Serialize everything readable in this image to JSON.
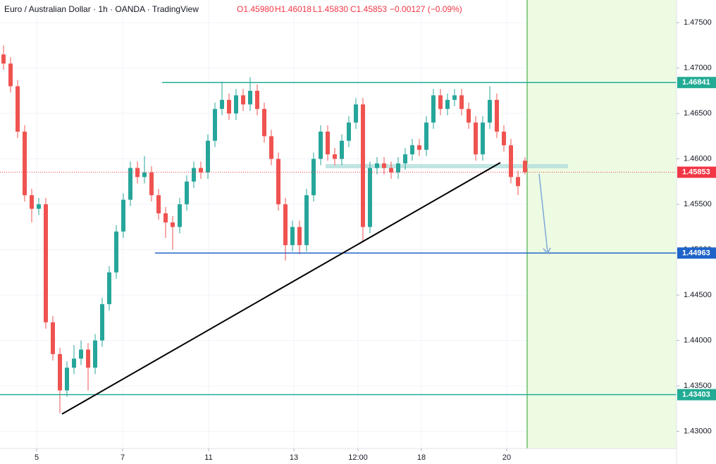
{
  "chart_data": {
    "type": "candlestick",
    "title": "Euro / Australian Dollar · 1h · OANDA · TradingView",
    "header_ohlc": [
      "O1.45980",
      "H1.46018",
      "L1.45830",
      "C1.45853"
    ],
    "header_change": "−0.00127 (−0.09%)",
    "up_color": "#26a69a",
    "down_color": "#ef5350",
    "open": [
      1.4715,
      1.4705,
      1.468,
      1.463,
      1.456,
      1.4545,
      1.455,
      1.442,
      1.4385,
      1.4345,
      1.437,
      1.438,
      1.439,
      1.437,
      1.44,
      1.444,
      1.4475,
      1.452,
      1.4555,
      1.459,
      1.458,
      1.4585,
      1.456,
      1.454,
      1.453,
      1.4525,
      1.455,
      1.4575,
      1.459,
      1.4585,
      1.462,
      1.4655,
      1.4665,
      1.465,
      1.467,
      1.466,
      1.4675,
      1.4655,
      1.4625,
      1.46,
      1.455,
      1.4505,
      1.4525,
      1.4505,
      1.456,
      1.46,
      1.463,
      1.4605,
      1.46,
      1.462,
      1.464,
      1.466,
      1.4525,
      1.459,
      1.4595,
      1.459,
      1.4585,
      1.4595,
      1.4605,
      1.4615,
      1.461,
      1.464,
      1.467,
      1.4655,
      1.4665,
      1.467,
      1.4655,
      1.464,
      1.4605,
      1.464,
      1.4665,
      1.463,
      1.4615,
      1.458,
      1.4598
    ],
    "high": [
      1.4725,
      1.4712,
      1.4687,
      1.4637,
      1.4567,
      1.4557,
      1.4557,
      1.4427,
      1.4392,
      1.4377,
      1.4395,
      1.44,
      1.4397,
      1.4407,
      1.4447,
      1.4482,
      1.4527,
      1.4562,
      1.4597,
      1.4597,
      1.4603,
      1.4592,
      1.4567,
      1.4547,
      1.4537,
      1.4557,
      1.4582,
      1.4597,
      1.4597,
      1.4627,
      1.4662,
      1.4685,
      1.4672,
      1.4677,
      1.4677,
      1.469,
      1.4682,
      1.4662,
      1.4632,
      1.4607,
      1.4557,
      1.4532,
      1.4532,
      1.4567,
      1.4607,
      1.4637,
      1.4637,
      1.4612,
      1.4627,
      1.4647,
      1.4667,
      1.4667,
      1.4597,
      1.4602,
      1.4602,
      1.4597,
      1.4602,
      1.4612,
      1.4622,
      1.4622,
      1.4647,
      1.4677,
      1.4677,
      1.4672,
      1.4677,
      1.4677,
      1.4662,
      1.4647,
      1.4647,
      1.468,
      1.4672,
      1.4637,
      1.4622,
      1.4587,
      1.46018
    ],
    "low": [
      1.4698,
      1.4673,
      1.4623,
      1.4553,
      1.453,
      1.4538,
      1.4413,
      1.4378,
      1.432,
      1.4338,
      1.4363,
      1.4373,
      1.4345,
      1.4363,
      1.4393,
      1.4433,
      1.4468,
      1.4513,
      1.4548,
      1.4573,
      1.4573,
      1.4553,
      1.4533,
      1.4513,
      1.45,
      1.4518,
      1.4543,
      1.4568,
      1.4578,
      1.4578,
      1.4613,
      1.4648,
      1.4643,
      1.4643,
      1.4653,
      1.4653,
      1.4648,
      1.4618,
      1.4593,
      1.4543,
      1.4488,
      1.4498,
      1.4495,
      1.4498,
      1.4553,
      1.4593,
      1.4598,
      1.4593,
      1.4593,
      1.4613,
      1.4633,
      1.4508,
      1.4518,
      1.4583,
      1.4583,
      1.4578,
      1.4578,
      1.4588,
      1.4598,
      1.4603,
      1.4603,
      1.4633,
      1.4648,
      1.4648,
      1.4658,
      1.4648,
      1.4633,
      1.4598,
      1.4598,
      1.4633,
      1.4623,
      1.4608,
      1.4573,
      1.456,
      1.4583
    ],
    "close": [
      1.4705,
      1.468,
      1.463,
      1.456,
      1.4545,
      1.455,
      1.442,
      1.4385,
      1.4345,
      1.437,
      1.438,
      1.439,
      1.437,
      1.44,
      1.444,
      1.4475,
      1.452,
      1.4555,
      1.459,
      1.458,
      1.4585,
      1.456,
      1.454,
      1.453,
      1.4525,
      1.455,
      1.4575,
      1.459,
      1.4585,
      1.462,
      1.4655,
      1.4665,
      1.465,
      1.467,
      1.466,
      1.4675,
      1.4655,
      1.4625,
      1.46,
      1.455,
      1.4505,
      1.4525,
      1.4505,
      1.456,
      1.46,
      1.463,
      1.4605,
      1.46,
      1.462,
      1.464,
      1.466,
      1.4525,
      1.459,
      1.4595,
      1.459,
      1.4585,
      1.4595,
      1.4605,
      1.4615,
      1.461,
      1.464,
      1.467,
      1.4655,
      1.4665,
      1.467,
      1.4655,
      1.464,
      1.4605,
      1.464,
      1.4665,
      1.463,
      1.4615,
      1.458,
      1.457,
      1.45853
    ],
    "last_color": "#f23645",
    "xlim": [
      -0.5,
      95.5
    ],
    "xticks": [
      {
        "value": 4.7,
        "label": "5"
      },
      {
        "value": 16.9,
        "label": "7"
      },
      {
        "value": 29.1,
        "label": "11"
      },
      {
        "value": 41.2,
        "label": "13"
      },
      {
        "value": 50.3,
        "label": "12:00"
      },
      {
        "value": 59.3,
        "label": "18"
      },
      {
        "value": 71.4,
        "label": "20"
      }
    ],
    "ylim": [
      1.4281,
      1.4775
    ],
    "yticks": [
      {
        "value": 1.475,
        "label": "1.47500"
      },
      {
        "value": 1.47,
        "label": "1.47000"
      },
      {
        "value": 1.465,
        "label": "1.46500"
      },
      {
        "value": 1.46,
        "label": "1.46000"
      },
      {
        "value": 1.455,
        "label": "1.45500"
      },
      {
        "value": 1.45,
        "label": "1.45000"
      },
      {
        "value": 1.445,
        "label": "1.44500"
      },
      {
        "value": 1.44,
        "label": "1.44000"
      },
      {
        "value": 1.435,
        "label": "1.43500"
      },
      {
        "value": 1.43,
        "label": "1.43000"
      }
    ],
    "grid": true,
    "levels": [
      {
        "value": 1.46841,
        "color": "#22ab94"
      },
      {
        "value": 1.44963,
        "color": "#1e63c8"
      },
      {
        "value": 1.43403,
        "color": "#22ab94"
      }
    ]
  }
}
